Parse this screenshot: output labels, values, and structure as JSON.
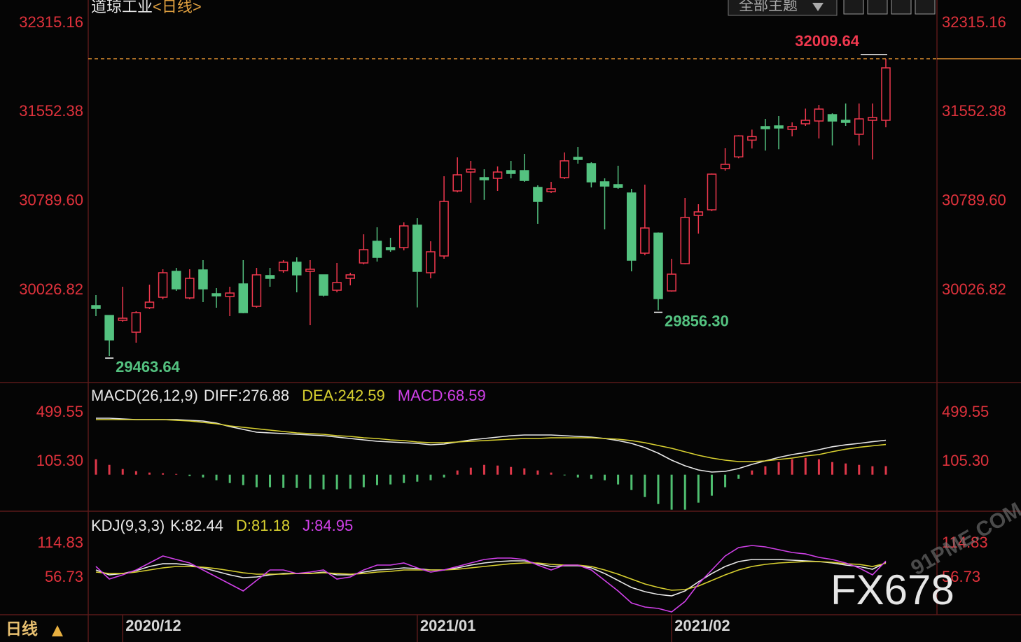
{
  "chart_data": [
    {
      "type": "candlestick",
      "title": "道琼工业",
      "subtitle": "<日线>",
      "categories": [
        null,
        null,
        "2020/12",
        null,
        null,
        null,
        null,
        null,
        null,
        null,
        null,
        null,
        null,
        null,
        null,
        null,
        null,
        null,
        null,
        null,
        null,
        null,
        null,
        null,
        "2021/01",
        null,
        null,
        null,
        null,
        null,
        null,
        null,
        null,
        null,
        null,
        null,
        null,
        null,
        null,
        null,
        null,
        null,
        null,
        "2021/02",
        null,
        null,
        null,
        null,
        null,
        null,
        null,
        null,
        null,
        null,
        null,
        null,
        null,
        null,
        null,
        null
      ],
      "open": [
        29895.2,
        29810.6,
        29769.4,
        29667.6,
        29877.2,
        29967.1,
        30188.7,
        29961.1,
        30200.7,
        29997.0,
        29973.0,
        30080.9,
        29889.2,
        30152.7,
        30194.7,
        30266.6,
        30188.7,
        30158.7,
        30026.9,
        30128.8,
        30260.6,
        30446.3,
        30392.3,
        30392.3,
        30584.0,
        30176.7,
        30320.5,
        30877.5,
        31039.3,
        30991.3,
        30985.4,
        31051.2,
        31051.2,
        30907.5,
        30871.5,
        30991.3,
        31165.0,
        31111.1,
        30955.4,
        30931.4,
        30859.6,
        30344.4,
        30516.1,
        30021.0,
        30254.6,
        30668.0,
        30715.8,
        31069.2,
        31169.0,
        31312.8,
        31428.6,
        31434.6,
        31404.7,
        31452.6,
        31476.5,
        31530.4,
        31482.5,
        31362.7,
        31482.5,
        31482.5
      ],
      "high": [
        29985.0,
        29810.6,
        30056.9,
        29847.3,
        30074.9,
        30206.7,
        30218.6,
        30206.7,
        30284.5,
        30044.9,
        30056.9,
        30284.5,
        30218.6,
        30218.6,
        30284.5,
        30308.5,
        30284.5,
        30158.7,
        30260.6,
        30176.7,
        30506.2,
        30566.1,
        30476.2,
        30608.0,
        30643.9,
        30446.3,
        31003.3,
        31165.0,
        31135.1,
        31063.2,
        31087.2,
        31135.1,
        31194.9,
        30925.5,
        30955.4,
        31206.8,
        31254.7,
        31123.1,
        30985.4,
        31093.2,
        30895.5,
        30931.4,
        30522.1,
        30296.5,
        30817.6,
        30763.7,
        31027.3,
        31243.0,
        31354.7,
        31402.7,
        31494.5,
        31518.5,
        31464.6,
        31582.4,
        31614.3,
        31542.4,
        31626.3,
        31626.3,
        31626.3,
        32009.64
      ],
      "low": [
        29805.3,
        29463.64,
        29757.4,
        29577.7,
        29865.2,
        29949.1,
        30021.0,
        29949.1,
        29925.1,
        29877.2,
        29805.3,
        29829.3,
        29877.2,
        30056.9,
        30176.7,
        30009.0,
        29727.5,
        29973.0,
        30009.0,
        30068.9,
        30248.6,
        30272.5,
        30356.4,
        30368.4,
        29880.0,
        30128.8,
        30296.5,
        30865.6,
        30776.7,
        30800.7,
        30877.5,
        30985.4,
        30955.4,
        30596.0,
        30859.6,
        30979.4,
        31111.1,
        30907.5,
        30548.1,
        30895.5,
        30188.7,
        30326.5,
        29856.3,
        30015.0,
        30248.6,
        30512.1,
        30703.8,
        31051.2,
        31157.1,
        31240.9,
        31222.9,
        31234.9,
        31344.7,
        31434.6,
        31326.8,
        31266.9,
        31434.6,
        31266.9,
        31146.9,
        31422.6
      ],
      "close": [
        29871.2,
        29601.7,
        29787.4,
        29835.3,
        29925.1,
        30176.7,
        30038.9,
        30128.8,
        30038.9,
        29979.0,
        30003.0,
        29835.3,
        30158.7,
        30128.8,
        30266.6,
        30158.7,
        30206.7,
        29985.0,
        30092.9,
        30158.7,
        30374.4,
        30308.5,
        30374.4,
        30578.0,
        30188.7,
        30356.4,
        30787.7,
        31015.3,
        31063.2,
        30973.4,
        31039.3,
        31027.3,
        30967.4,
        30787.7,
        30895.5,
        31135.1,
        31147.1,
        30955.4,
        30919.5,
        30907.5,
        30284.5,
        30560.1,
        29955.1,
        30164.7,
        30650.0,
        30697.9,
        31021.3,
        31105.2,
        31348.7,
        31342.7,
        31410.6,
        31416.6,
        31428.6,
        31482.5,
        31578.4,
        31476.5,
        31464.6,
        31494.5,
        31506.5,
        31931.6
      ],
      "up_color": "#f0384e",
      "down_color": "#54c280",
      "ylim": [
        29248.3,
        32512.8
      ],
      "yticks": [
        32315.16,
        31552.38,
        {
          "value": 30789.6,
          "label": "30789.60"
        },
        30026.82
      ],
      "annotations": [
        {
          "value": 32009.64,
          "label": "32009.64"
        },
        {
          "value": 29463.64,
          "label": "29463.64"
        },
        {
          "value": 29856.3,
          "label": "29856.30"
        }
      ]
    },
    {
      "type": "line",
      "title": "MACD(26,12,9)",
      "ylim": [
        -288.9,
        736.1
      ],
      "yticks": [
        499.55,
        {
          "value": 105.3,
          "label": "105.30"
        }
      ],
      "series": [
        {
          "name": "DIFF:276.88",
          "color": "#e8e8e8",
          "values": [
            454.5,
            454.5,
            448.9,
            443.2,
            443.2,
            443.2,
            443.2,
            437.6,
            432.0,
            415.1,
            386.9,
            364.4,
            341.8,
            336.2,
            330.6,
            324.9,
            319.3,
            313.7,
            302.4,
            291.2,
            279.9,
            268.6,
            263.0,
            257.4,
            251.7,
            240.5,
            246.1,
            263.0,
            279.9,
            291.2,
            302.4,
            313.7,
            319.3,
            319.3,
            319.3,
            313.7,
            308.1,
            302.4,
            291.2,
            274.3,
            251.7,
            217.9,
            172.9,
            116.6,
            71.5,
            37.7,
            20.8,
            26.5,
            49.0,
            82.8,
            110.9,
            139.1,
            161.6,
            178.5,
            201.0,
            225.0,
            240.0,
            252.0,
            265.0,
            276.88
          ]
        },
        {
          "name": "DEA:242.59",
          "color": "#d8d030",
          "values": [
            443.2,
            443.2,
            443.2,
            443.2,
            443.2,
            443.2,
            437.6,
            432.0,
            420.7,
            409.4,
            392.5,
            381.3,
            370.0,
            358.7,
            347.5,
            336.2,
            330.6,
            324.9,
            313.7,
            308.1,
            296.8,
            291.2,
            279.9,
            274.3,
            263.0,
            257.4,
            257.4,
            263.0,
            268.6,
            274.3,
            279.9,
            285.5,
            291.2,
            291.2,
            296.8,
            296.8,
            296.8,
            296.8,
            291.2,
            285.5,
            274.3,
            257.4,
            234.8,
            212.3,
            184.1,
            156.0,
            133.5,
            116.6,
            105.3,
            105.3,
            110.9,
            122.2,
            133.5,
            150.4,
            161.6,
            185.0,
            205.0,
            220.0,
            232.0,
            242.59
          ]
        },
        {
          "name": "MACD:68.59",
          "type": "bar",
          "color": "#d040e8",
          "up_color": "#e0384a",
          "down_color": "#4fbf70",
          "values": [
            123.9,
            78.8,
            45.1,
            28.2,
            16.9,
            11.3,
            5.6,
            -11.3,
            -22.5,
            -45.1,
            -67.6,
            -84.5,
            -101.4,
            -101.4,
            -107.0,
            -107.0,
            -112.6,
            -118.3,
            -118.3,
            -112.6,
            -101.4,
            -84.5,
            -78.8,
            -67.6,
            -56.3,
            -45.1,
            -22.5,
            33.8,
            56.3,
            78.8,
            73.2,
            62.0,
            50.7,
            33.8,
            16.9,
            -5.6,
            -22.5,
            -33.8,
            -45.1,
            -78.8,
            -123.9,
            -180.2,
            -236.5,
            -281.6,
            -281.6,
            -225.3,
            -169.0,
            -101.4,
            -33.8,
            33.8,
            67.6,
            101.4,
            123.9,
            135.2,
            123.9,
            101.4,
            90.1,
            78.8,
            67.6,
            68.59
          ]
        }
      ]
    },
    {
      "type": "line",
      "title": "KDJ(9,3,3)",
      "ylim": [
        -4.9,
        168.2
      ],
      "yticks": [
        114.83,
        56.73
      ],
      "series": [
        {
          "name": "K:82.44",
          "color": "#e8e8e8",
          "values": [
            69.8,
            61.5,
            63.8,
            68.6,
            75.7,
            80.4,
            80.4,
            78.1,
            73.3,
            67.4,
            61.5,
            56.7,
            57.9,
            61.5,
            63.8,
            63.8,
            63.8,
            66.2,
            61.5,
            61.5,
            66.2,
            69.8,
            71.0,
            73.3,
            72.1,
            69.8,
            69.8,
            73.3,
            78.1,
            81.6,
            84.0,
            85.2,
            85.2,
            80.4,
            75.7,
            76.9,
            76.9,
            73.3,
            63.8,
            52.0,
            40.1,
            33.0,
            28.3,
            25.9,
            34.2,
            49.6,
            63.8,
            75.7,
            84.0,
            87.6,
            87.6,
            87.6,
            86.4,
            85.2,
            84.0,
            81.6,
            78.1,
            75.7,
            71.0,
            82.44
          ]
        },
        {
          "name": "D:81.18",
          "color": "#d8d030",
          "values": [
            66.2,
            63.8,
            63.8,
            66.2,
            69.8,
            73.3,
            75.7,
            75.7,
            74.5,
            72.1,
            68.6,
            65.0,
            62.7,
            62.7,
            62.7,
            63.8,
            63.8,
            65.0,
            63.8,
            62.7,
            63.8,
            66.2,
            67.4,
            69.8,
            69.8,
            69.8,
            69.8,
            71.0,
            73.3,
            75.7,
            78.1,
            80.4,
            81.6,
            81.6,
            79.3,
            78.1,
            78.1,
            75.7,
            69.8,
            62.7,
            54.4,
            46.1,
            40.1,
            35.4,
            36.6,
            42.5,
            52.0,
            61.5,
            69.8,
            75.7,
            79.3,
            81.6,
            82.8,
            84.0,
            84.0,
            82.8,
            80.4,
            79.3,
            75.7,
            81.18
          ]
        },
        {
          "name": "J:84.95",
          "color": "#d040e8",
          "values": [
            75.7,
            54.4,
            61.5,
            69.8,
            81.6,
            93.5,
            87.6,
            81.6,
            69.8,
            57.9,
            46.1,
            34.2,
            52.0,
            69.8,
            69.8,
            63.8,
            66.2,
            69.8,
            54.4,
            57.9,
            69.8,
            78.1,
            78.1,
            81.6,
            73.3,
            66.2,
            69.8,
            75.7,
            81.6,
            87.6,
            89.9,
            89.9,
            87.6,
            78.1,
            69.8,
            78.1,
            78.1,
            69.8,
            52.0,
            34.2,
            14.0,
            6.9,
            4.6,
            -1.4,
            16.4,
            46.1,
            69.8,
            93.5,
            107.7,
            111.3,
            108.9,
            104.2,
            99.4,
            97.0,
            91.1,
            87.6,
            81.6,
            73.3,
            61.5,
            84.95
          ]
        }
      ]
    }
  ],
  "toolbar": {
    "theme": "全部主题"
  },
  "footer": {
    "period": "日线"
  },
  "watermark": {
    "brand": "FX678",
    "site": "91PME.COM"
  }
}
